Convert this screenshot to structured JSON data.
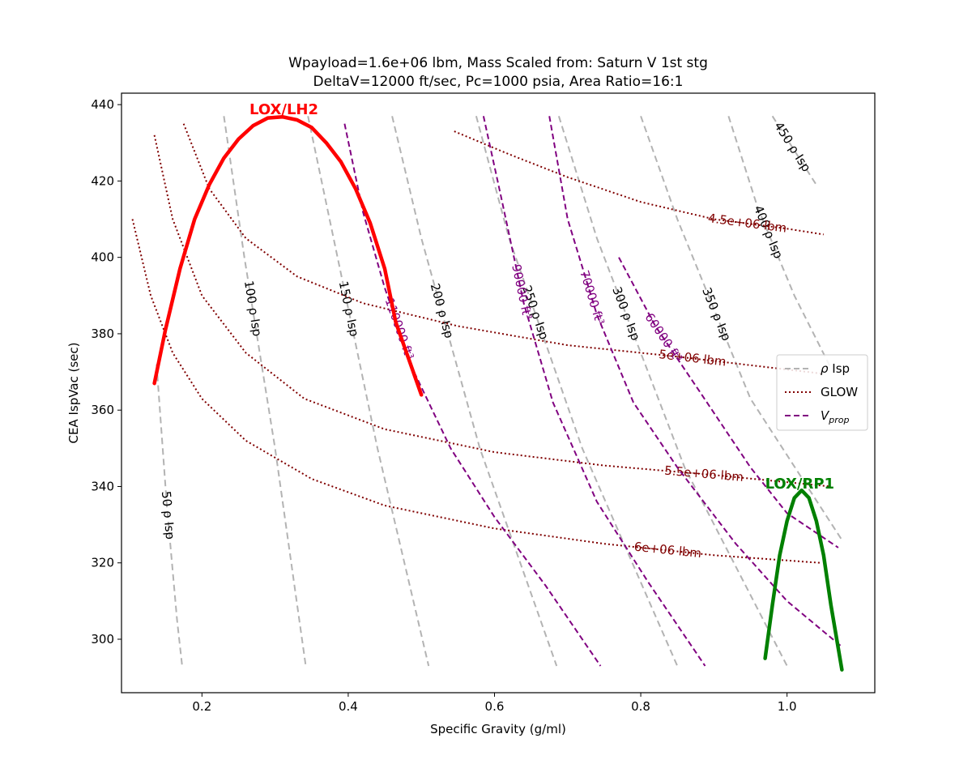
{
  "chart_data": {
    "type": "line",
    "title_line1": "Wpayload=1.6e+06 lbm, Mass Scaled from: Saturn V 1st stg",
    "title_line2": "DeltaV=12000 ft/sec, Pc=1000 psia, Area Ratio=16:1",
    "xlabel": "Specific Gravity (g/ml)",
    "ylabel": "CEA IspVac (sec)",
    "xlim": [
      0.09,
      1.12
    ],
    "ylim": [
      286,
      443
    ],
    "xticks": [
      0.2,
      0.4,
      0.6,
      0.8,
      1.0
    ],
    "yticks": [
      300,
      320,
      340,
      360,
      380,
      400,
      420,
      440
    ],
    "grid": false,
    "legend_position": "center-right",
    "legend": [
      {
        "key": "rho_isp",
        "label": "ρ Isp",
        "color": "#b3b3b3",
        "dash": "dashed"
      },
      {
        "key": "glow",
        "label": "GLOW",
        "color": "#800000",
        "dash": "dotted"
      },
      {
        "key": "vprop",
        "label": "V",
        "sub": "prop",
        "color": "#800080",
        "dash": "dashed"
      }
    ],
    "propellants": [
      {
        "name": "LOX/LH2",
        "color": "#ff0000",
        "points": [
          [
            0.135,
            367
          ],
          [
            0.15,
            381
          ],
          [
            0.17,
            397
          ],
          [
            0.19,
            410
          ],
          [
            0.21,
            419
          ],
          [
            0.23,
            426
          ],
          [
            0.25,
            431
          ],
          [
            0.27,
            434.5
          ],
          [
            0.29,
            436.5
          ],
          [
            0.31,
            436.8
          ],
          [
            0.33,
            436
          ],
          [
            0.35,
            434
          ],
          [
            0.37,
            430
          ],
          [
            0.39,
            425
          ],
          [
            0.41,
            418
          ],
          [
            0.43,
            409
          ],
          [
            0.45,
            397
          ],
          [
            0.465,
            383
          ],
          [
            0.5,
            364
          ]
        ]
      },
      {
        "name": "LOX/RP1",
        "color": "#008000",
        "points": [
          [
            0.97,
            295
          ],
          [
            0.98,
            309
          ],
          [
            0.99,
            322
          ],
          [
            1.0,
            331
          ],
          [
            1.01,
            337
          ],
          [
            1.02,
            339
          ],
          [
            1.03,
            337
          ],
          [
            1.04,
            331
          ],
          [
            1.05,
            322
          ],
          [
            1.06,
            309
          ],
          [
            1.075,
            292
          ]
        ]
      }
    ],
    "rho_isp_contours": [
      {
        "label": "50 ρ Isp",
        "value": 50,
        "points": [
          [
            0.138,
            372
          ],
          [
            0.152,
            335
          ],
          [
            0.166,
            305
          ],
          [
            0.173,
            293
          ]
        ]
      },
      {
        "label": "100 ρ Isp",
        "value": 100,
        "points": [
          [
            0.23,
            437
          ],
          [
            0.258,
            400
          ],
          [
            0.3,
            350
          ],
          [
            0.342,
            293
          ]
        ]
      },
      {
        "label": "150 ρ Isp",
        "value": 150,
        "points": [
          [
            0.345,
            437
          ],
          [
            0.38,
            405
          ],
          [
            0.44,
            350
          ],
          [
            0.51,
            293
          ]
        ]
      },
      {
        "label": "200 ρ Isp",
        "value": 200,
        "points": [
          [
            0.46,
            437
          ],
          [
            0.5,
            405
          ],
          [
            0.58,
            350
          ],
          [
            0.685,
            293
          ]
        ]
      },
      {
        "label": "250 ρ Isp",
        "value": 250,
        "points": [
          [
            0.575,
            437
          ],
          [
            0.62,
            405
          ],
          [
            0.72,
            350
          ],
          [
            0.85,
            293
          ]
        ]
      },
      {
        "label": "300 ρ Isp",
        "value": 300,
        "points": [
          [
            0.688,
            437
          ],
          [
            0.74,
            405
          ],
          [
            0.86,
            345
          ],
          [
            1.0,
            293
          ]
        ]
      },
      {
        "label": "350 ρ Isp",
        "value": 350,
        "points": [
          [
            0.8,
            437
          ],
          [
            0.85,
            410
          ],
          [
            0.95,
            363
          ],
          [
            1.075,
            326
          ]
        ]
      },
      {
        "label": "400 ρ Isp",
        "value": 400,
        "points": [
          [
            0.92,
            437
          ],
          [
            0.96,
            413
          ],
          [
            1.01,
            390
          ],
          [
            1.06,
            371
          ]
        ]
      },
      {
        "label": "450 ρ Isp",
        "value": 450,
        "points": [
          [
            0.98,
            437
          ],
          [
            1.01,
            428
          ],
          [
            1.04,
            419
          ]
        ]
      }
    ],
    "glow_contours": [
      {
        "label": "4.5e+06 lbm",
        "points": [
          [
            0.545,
            433
          ],
          [
            0.62,
            427
          ],
          [
            0.7,
            421
          ],
          [
            0.8,
            414.5
          ],
          [
            0.9,
            410
          ],
          [
            1.0,
            407.5
          ],
          [
            1.05,
            406
          ]
        ]
      },
      {
        "label": "5e+06 lbm",
        "points": [
          [
            0.175,
            435
          ],
          [
            0.21,
            418
          ],
          [
            0.26,
            405
          ],
          [
            0.33,
            395
          ],
          [
            0.42,
            388
          ],
          [
            0.55,
            382
          ],
          [
            0.7,
            377
          ],
          [
            0.85,
            374
          ],
          [
            1.05,
            369.5
          ]
        ]
      },
      {
        "label": "5.5e+06 lbm",
        "points": [
          [
            0.135,
            432
          ],
          [
            0.16,
            410
          ],
          [
            0.2,
            390
          ],
          [
            0.26,
            375
          ],
          [
            0.34,
            363
          ],
          [
            0.45,
            355
          ],
          [
            0.6,
            349
          ],
          [
            0.75,
            345.5
          ],
          [
            0.9,
            343
          ],
          [
            1.06,
            340
          ]
        ]
      },
      {
        "label": "6e+06 lbm",
        "points": [
          [
            0.105,
            410
          ],
          [
            0.13,
            390
          ],
          [
            0.16,
            375
          ],
          [
            0.2,
            363
          ],
          [
            0.26,
            352
          ],
          [
            0.35,
            342
          ],
          [
            0.45,
            335
          ],
          [
            0.6,
            329
          ],
          [
            0.75,
            325
          ],
          [
            0.9,
            322
          ],
          [
            1.045,
            320
          ]
        ]
      }
    ],
    "vprop_contours": [
      {
        "label": "60000 ft³",
        "points": [
          [
            0.77,
            400
          ],
          [
            0.82,
            382
          ],
          [
            0.88,
            365
          ],
          [
            0.95,
            345
          ],
          [
            1.0,
            333
          ],
          [
            1.07,
            324
          ]
        ]
      },
      {
        "label": "70000 ft³",
        "points": [
          [
            0.675,
            437
          ],
          [
            0.7,
            410
          ],
          [
            0.74,
            385
          ],
          [
            0.79,
            362
          ],
          [
            0.85,
            345
          ],
          [
            0.93,
            325
          ],
          [
            1.0,
            310
          ],
          [
            1.075,
            298
          ]
        ]
      },
      {
        "label": "90000 ft³",
        "points": [
          [
            0.585,
            437
          ],
          [
            0.61,
            415
          ],
          [
            0.64,
            388
          ],
          [
            0.68,
            362
          ],
          [
            0.74,
            336
          ],
          [
            0.81,
            315
          ],
          [
            0.888,
            293
          ]
        ]
      },
      {
        "label": "110000 ft³",
        "points": [
          [
            0.395,
            435
          ],
          [
            0.42,
            412
          ],
          [
            0.45,
            392
          ],
          [
            0.49,
            370
          ],
          [
            0.54,
            350
          ],
          [
            0.6,
            332
          ],
          [
            0.67,
            314
          ],
          [
            0.745,
            293
          ]
        ]
      }
    ],
    "annotations": [
      {
        "text": "LOX/LH2",
        "color": "#ff0000"
      },
      {
        "text": "LOX/RP1",
        "color": "#008000"
      }
    ]
  }
}
